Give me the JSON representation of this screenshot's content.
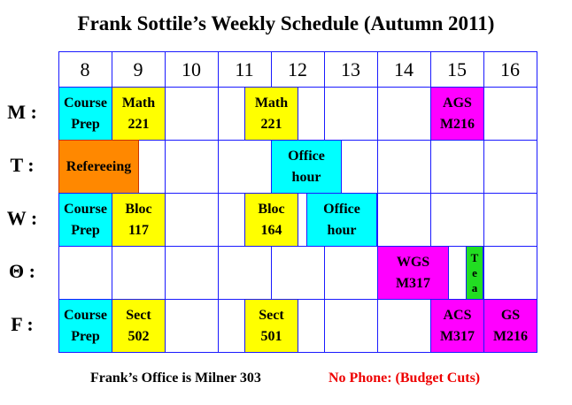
{
  "title": "Frank Sottile’s Weekly Schedule (Autumn 2011)",
  "hours": [
    "8",
    "9",
    "10",
    "11",
    "12",
    "13",
    "14",
    "15",
    "16"
  ],
  "days": [
    {
      "label": "M :"
    },
    {
      "label": "T :"
    },
    {
      "label": "W :"
    },
    {
      "label": "Θ :"
    },
    {
      "label": "F :"
    }
  ],
  "blocks": {
    "m_course_prep": {
      "line1": "Course",
      "line2": "Prep"
    },
    "m_math_9": {
      "line1": "Math",
      "line2": "221"
    },
    "m_math_11": {
      "line1": "Math",
      "line2": "221"
    },
    "m_ags": {
      "line1": "AGS",
      "line2": "M216"
    },
    "t_refereeing": {
      "line1": "Refereeing"
    },
    "t_office": {
      "line1": "Office",
      "line2": "hour"
    },
    "w_course_prep": {
      "line1": "Course",
      "line2": "Prep"
    },
    "w_bloc_9": {
      "line1": "Bloc",
      "line2": "117"
    },
    "w_bloc_11": {
      "line1": "Bloc",
      "line2": "164"
    },
    "w_office": {
      "line1": "Office",
      "line2": "hour"
    },
    "th_wgs": {
      "line1": "WGS",
      "line2": "M317"
    },
    "th_tea": {
      "l1": "T",
      "l2": "e",
      "l3": "a"
    },
    "f_course_prep": {
      "line1": "Course",
      "line2": "Prep"
    },
    "f_sect_9": {
      "line1": "Sect",
      "line2": "502"
    },
    "f_sect_11": {
      "line1": "Sect",
      "line2": "501"
    },
    "f_acs": {
      "line1": "ACS",
      "line2": "M317"
    },
    "f_gs": {
      "line1": "GS",
      "line2": "M216"
    }
  },
  "colors": {
    "course_prep": "#00ffff",
    "class": "#ffff00",
    "seminar": "#ff00ff",
    "refereeing": "#ff8800",
    "tea": "#22dd22",
    "grid": "#1a1aff",
    "note": "#ee0000"
  },
  "footer": {
    "office": "Frank’s Office is Milner 303",
    "phone": "No Phone: (Budget Cuts)"
  }
}
